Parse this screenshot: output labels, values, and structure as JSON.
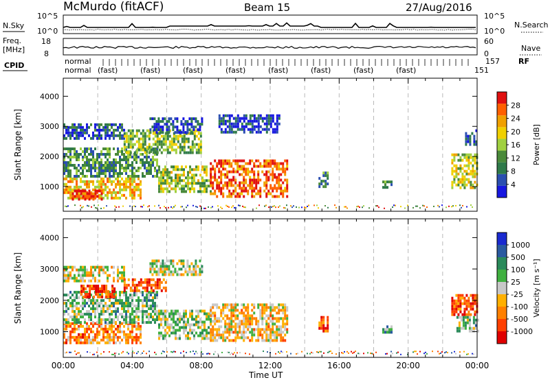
{
  "header": {
    "station": "McMurdo (fitACF)",
    "beam": "Beam 15",
    "date": "27/Aug/2016"
  },
  "strip_labels": {
    "nsky": "N.Sky",
    "nsky_ticks": [
      "10^5",
      "10^0"
    ],
    "nsearch": "N.Search",
    "nsearch_ticks": [
      "10^5",
      "10^0"
    ],
    "freq_line1": "Freq.",
    "freq_line2": "[MHz]",
    "freq_ticks": [
      "18",
      "8"
    ],
    "nave": "Nave",
    "nave_ticks": [
      "60",
      "0"
    ],
    "cpid": "CPID",
    "rf": "RF",
    "cpid_tail1": "157",
    "cpid_tail2": "151",
    "mode_words": [
      "normal",
      "normal",
      "(fast)",
      "(fast)",
      "(fast)",
      "(fast)",
      "(fast)",
      "(fast)",
      "(fast)",
      "(fast)"
    ]
  },
  "colors": {
    "power": [
      "#1717e0",
      "#2b4fb0",
      "#2f7a4a",
      "#4a8a3a",
      "#a0d040",
      "#f0d000",
      "#f0a000",
      "#ff6000",
      "#e01010"
    ],
    "velocity": [
      "#e00000",
      "#ff4000",
      "#ff8000",
      "#ffb000",
      "#c8c8c8",
      "#40b040",
      "#2a8a5a",
      "#2a5aa0",
      "#1a2ad0"
    ],
    "grid": "#b8b8b8"
  },
  "chart_data": [
    {
      "type": "heatmap",
      "name": "power",
      "xlabel": "Time UT",
      "ylabel": "Slant Range [km]",
      "xlim": [
        "00:00",
        "24:00"
      ],
      "ylim": [
        180,
        4600
      ],
      "xticks": [
        "00:00",
        "04:00",
        "08:00",
        "12:00",
        "16:00",
        "20:00",
        "00:00"
      ],
      "yticks": [
        "1000",
        "2000",
        "3000",
        "4000"
      ],
      "colorbar_label": "Power [dB]",
      "colorbar_ticks": [
        "4",
        "8",
        "12",
        "16",
        "20",
        "24",
        "28"
      ],
      "regions": [
        {
          "t": [
            0.0,
            4.5
          ],
          "r": [
            600,
            1300
          ],
          "level": 0.65
        },
        {
          "t": [
            0.5,
            2.2
          ],
          "r": [
            600,
            900
          ],
          "level": 0.95
        },
        {
          "t": [
            0.0,
            5.5
          ],
          "r": [
            1300,
            2300
          ],
          "level": 0.35
        },
        {
          "t": [
            0.0,
            3.5
          ],
          "r": [
            2600,
            3100
          ],
          "level": 0.2
        },
        {
          "t": [
            3.5,
            8.0
          ],
          "r": [
            2100,
            2900
          ],
          "level": 0.45
        },
        {
          "t": [
            5.0,
            8.0
          ],
          "r": [
            2800,
            3300
          ],
          "level": 0.15
        },
        {
          "t": [
            5.5,
            8.5
          ],
          "r": [
            800,
            1700
          ],
          "level": 0.5
        },
        {
          "t": [
            8.5,
            13.0
          ],
          "r": [
            700,
            1900
          ],
          "level": 0.85
        },
        {
          "t": [
            9.0,
            12.5
          ],
          "r": [
            2800,
            3400
          ],
          "level": 0.15
        },
        {
          "t": [
            14.8,
            15.3
          ],
          "r": [
            1000,
            1500
          ],
          "level": 0.3
        },
        {
          "t": [
            18.5,
            19.0
          ],
          "r": [
            1000,
            1200
          ],
          "level": 0.35
        },
        {
          "t": [
            22.5,
            24.0
          ],
          "r": [
            1000,
            2100
          ],
          "level": 0.55
        },
        {
          "t": [
            23.3,
            24.0
          ],
          "r": [
            2400,
            2900
          ],
          "level": 0.2
        }
      ]
    },
    {
      "type": "heatmap",
      "name": "velocity",
      "xlabel": "Time UT",
      "ylabel": "Slant Range [km]",
      "xlim": [
        "00:00",
        "24:00"
      ],
      "ylim": [
        180,
        4600
      ],
      "xticks": [
        "00:00",
        "04:00",
        "08:00",
        "12:00",
        "16:00",
        "20:00",
        "00:00"
      ],
      "yticks": [
        "1000",
        "2000",
        "3000",
        "4000"
      ],
      "colorbar_label": "Velocity [m s⁻¹]",
      "colorbar_ticks": [
        "-1000",
        "-500",
        "-100",
        "-25",
        "25",
        "100",
        "500",
        "1000"
      ],
      "regions": [
        {
          "t": [
            0.0,
            4.5
          ],
          "r": [
            600,
            1300
          ],
          "level": 0.3
        },
        {
          "t": [
            0.0,
            5.5
          ],
          "r": [
            1300,
            2300
          ],
          "level": 0.6
        },
        {
          "t": [
            1.0,
            3.0
          ],
          "r": [
            2100,
            2500
          ],
          "level": 0.15
        },
        {
          "t": [
            0.0,
            3.5
          ],
          "r": [
            2600,
            3100
          ],
          "level": 0.45
        },
        {
          "t": [
            3.5,
            6.0
          ],
          "r": [
            2300,
            2700
          ],
          "level": 0.18
        },
        {
          "t": [
            5.0,
            8.0
          ],
          "r": [
            2800,
            3300
          ],
          "level": 0.5
        },
        {
          "t": [
            5.5,
            8.5
          ],
          "r": [
            800,
            1700
          ],
          "level": 0.55
        },
        {
          "t": [
            8.5,
            13.0
          ],
          "r": [
            700,
            1900
          ],
          "level": 0.4
        },
        {
          "t": [
            14.8,
            15.3
          ],
          "r": [
            1000,
            1500
          ],
          "level": 0.2
        },
        {
          "t": [
            18.5,
            19.0
          ],
          "r": [
            1000,
            1200
          ],
          "level": 0.65
        },
        {
          "t": [
            22.5,
            24.0
          ],
          "r": [
            1500,
            2200
          ],
          "level": 0.18
        },
        {
          "t": [
            22.8,
            24.0
          ],
          "r": [
            1000,
            1500
          ],
          "level": 0.6
        }
      ]
    }
  ]
}
